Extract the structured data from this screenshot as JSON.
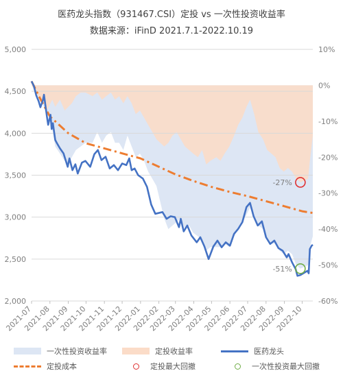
{
  "title": "医药龙头指数（931467.CSI）定投 vs 一次性投资收益率",
  "subtitle": "数据来源：iFinD 2021.7.1-2022.10.19",
  "colors": {
    "lump_area": "#dde6f4",
    "dca_area": "#fbdcc8",
    "index_line": "#4472c4",
    "cost_line": "#ed7d31",
    "dca_marker": "#e03030",
    "lump_marker": "#70ad47"
  },
  "chart_data": {
    "type": "line",
    "title": "医药龙头指数（931467.CSI）定投 vs 一次性投资收益率",
    "subtitle": "数据来源：iFinD 2021.7.1-2022.10.19",
    "x_ticks": [
      "2021-07",
      "2021-08",
      "2021-09",
      "2021-10",
      "2021-11",
      "2021-12",
      "2022-01",
      "2022-02",
      "2022-03",
      "2022-04",
      "2022-05",
      "2022-06",
      "2022-07",
      "2022-08",
      "2022-09",
      "2022-10"
    ],
    "y_left": {
      "min": 2000,
      "max": 5000,
      "ticks": [
        "5,000",
        "4,500",
        "4,000",
        "3,500",
        "3,000",
        "2,500",
        "2,000"
      ]
    },
    "y_right": {
      "min": -60,
      "max": 10,
      "ticks": [
        "10%",
        "0%",
        "-10%",
        "-20%",
        "-30%",
        "-40%",
        "-50%",
        "-60%"
      ]
    },
    "series": [
      {
        "name": "一次性投资收益率",
        "type": "area",
        "axis": "right",
        "points": [
          [
            "2021-07-01",
            0
          ],
          [
            "2021-07-12",
            -3
          ],
          [
            "2021-07-22",
            -6
          ],
          [
            "2021-07-27",
            -9
          ],
          [
            "2021-07-30",
            -8
          ],
          [
            "2021-08-05",
            -12
          ],
          [
            "2021-08-10",
            -17
          ],
          [
            "2021-08-18",
            -19
          ],
          [
            "2021-08-26",
            -21
          ],
          [
            "2021-09-01",
            -22
          ],
          [
            "2021-09-07",
            -20
          ],
          [
            "2021-09-14",
            -18
          ],
          [
            "2021-09-22",
            -17
          ],
          [
            "2021-09-30",
            -16
          ],
          [
            "2021-10-12",
            -16
          ],
          [
            "2021-10-20",
            -13
          ],
          [
            "2021-10-28",
            -16
          ],
          [
            "2021-11-04",
            -14
          ],
          [
            "2021-11-12",
            -13
          ],
          [
            "2021-11-19",
            -16
          ],
          [
            "2021-11-26",
            -16
          ],
          [
            "2021-12-03",
            -18
          ],
          [
            "2021-12-10",
            -14
          ],
          [
            "2021-12-17",
            -17
          ],
          [
            "2021-12-24",
            -20
          ],
          [
            "2021-12-31",
            -19
          ],
          [
            "2022-01-07",
            -21
          ],
          [
            "2022-01-14",
            -24
          ],
          [
            "2022-01-21",
            -26
          ],
          [
            "2022-01-28",
            -28
          ],
          [
            "2022-02-10",
            -37
          ],
          [
            "2022-02-17",
            -40
          ],
          [
            "2022-02-24",
            -39
          ],
          [
            "2022-03-03",
            -38
          ],
          [
            "2022-03-10",
            -37
          ],
          [
            "2022-03-17",
            -40
          ],
          [
            "2022-03-24",
            -39
          ],
          [
            "2022-03-31",
            -41
          ],
          [
            "2022-04-08",
            -42
          ],
          [
            "2022-04-15",
            -43
          ],
          [
            "2022-04-22",
            -46
          ],
          [
            "2022-04-29",
            -45
          ],
          [
            "2022-05-09",
            -45
          ],
          [
            "2022-05-16",
            -45
          ],
          [
            "2022-05-23",
            -44
          ],
          [
            "2022-05-31",
            -45
          ],
          [
            "2022-06-08",
            -42
          ],
          [
            "2022-06-15",
            -40
          ],
          [
            "2022-06-22",
            -38
          ],
          [
            "2022-06-29",
            -36
          ],
          [
            "2022-07-05",
            -34
          ],
          [
            "2022-07-12",
            -37
          ],
          [
            "2022-07-19",
            -39
          ],
          [
            "2022-07-27",
            -40
          ],
          [
            "2022-08-03",
            -43
          ],
          [
            "2022-08-10",
            -44
          ],
          [
            "2022-08-17",
            -44
          ],
          [
            "2022-08-24",
            -46
          ],
          [
            "2022-08-31",
            -47
          ],
          [
            "2022-09-07",
            -46
          ],
          [
            "2022-09-14",
            -47
          ],
          [
            "2022-09-21",
            -50
          ],
          [
            "2022-09-28",
            -51
          ],
          [
            "2022-10-11",
            -50
          ],
          [
            "2022-10-14",
            -45
          ],
          [
            "2022-10-19",
            -42
          ]
        ]
      },
      {
        "name": "定投收益率",
        "type": "area",
        "axis": "right",
        "points": [
          [
            "2021-07-01",
            0
          ],
          [
            "2021-07-12",
            -3
          ],
          [
            "2021-07-22",
            -5
          ],
          [
            "2021-07-27",
            -7
          ],
          [
            "2021-07-30",
            -6
          ],
          [
            "2021-08-05",
            -4
          ],
          [
            "2021-08-10",
            -6
          ],
          [
            "2021-08-18",
            -4
          ],
          [
            "2021-08-26",
            -7
          ],
          [
            "2021-09-01",
            -6
          ],
          [
            "2021-09-07",
            -5
          ],
          [
            "2021-09-14",
            -3
          ],
          [
            "2021-09-22",
            -2
          ],
          [
            "2021-09-30",
            -2
          ],
          [
            "2021-10-12",
            -3
          ],
          [
            "2021-10-20",
            -2
          ],
          [
            "2021-10-28",
            -4
          ],
          [
            "2021-11-04",
            -3
          ],
          [
            "2021-11-12",
            -2
          ],
          [
            "2021-11-19",
            -4
          ],
          [
            "2021-11-26",
            -3
          ],
          [
            "2021-12-03",
            -5
          ],
          [
            "2021-12-10",
            -3
          ],
          [
            "2021-12-17",
            -5
          ],
          [
            "2021-12-24",
            -8
          ],
          [
            "2021-12-31",
            -7
          ],
          [
            "2022-01-07",
            -9
          ],
          [
            "2022-01-14",
            -11
          ],
          [
            "2022-01-21",
            -13
          ],
          [
            "2022-01-28",
            -15
          ],
          [
            "2022-02-10",
            -17
          ],
          [
            "2022-02-17",
            -16
          ],
          [
            "2022-02-24",
            -14
          ],
          [
            "2022-03-03",
            -13
          ],
          [
            "2022-03-10",
            -15
          ],
          [
            "2022-03-17",
            -17
          ],
          [
            "2022-03-24",
            -18
          ],
          [
            "2022-03-31",
            -19
          ],
          [
            "2022-04-08",
            -20
          ],
          [
            "2022-04-15",
            -18
          ],
          [
            "2022-04-22",
            -22
          ],
          [
            "2022-04-29",
            -21
          ],
          [
            "2022-05-09",
            -20
          ],
          [
            "2022-05-16",
            -21
          ],
          [
            "2022-05-23",
            -19
          ],
          [
            "2022-05-31",
            -17
          ],
          [
            "2022-06-08",
            -14
          ],
          [
            "2022-06-15",
            -11
          ],
          [
            "2022-06-22",
            -9
          ],
          [
            "2022-06-29",
            -6
          ],
          [
            "2022-07-05",
            -4
          ],
          [
            "2022-07-12",
            -8
          ],
          [
            "2022-07-19",
            -13
          ],
          [
            "2022-07-27",
            -15
          ],
          [
            "2022-08-03",
            -18
          ],
          [
            "2022-08-10",
            -19
          ],
          [
            "2022-08-17",
            -20
          ],
          [
            "2022-08-24",
            -23
          ],
          [
            "2022-08-31",
            -24
          ],
          [
            "2022-09-07",
            -23
          ],
          [
            "2022-09-14",
            -24
          ],
          [
            "2022-09-21",
            -26
          ],
          [
            "2022-09-28",
            -27
          ],
          [
            "2022-10-11",
            -26
          ],
          [
            "2022-10-14",
            -21
          ],
          [
            "2022-10-19",
            -14
          ]
        ]
      },
      {
        "name": "医药龙头",
        "type": "line",
        "axis": "left",
        "points": [
          [
            "2021-07-01",
            4620
          ],
          [
            "2021-07-05",
            4560
          ],
          [
            "2021-07-09",
            4450
          ],
          [
            "2021-07-13",
            4380
          ],
          [
            "2021-07-16",
            4310
          ],
          [
            "2021-07-20",
            4390
          ],
          [
            "2021-07-22",
            4460
          ],
          [
            "2021-07-27",
            4200
          ],
          [
            "2021-07-29",
            4100
          ],
          [
            "2021-08-02",
            4220
          ],
          [
            "2021-08-04",
            4050
          ],
          [
            "2021-08-06",
            4120
          ],
          [
            "2021-08-10",
            3920
          ],
          [
            "2021-08-13",
            3880
          ],
          [
            "2021-08-18",
            3820
          ],
          [
            "2021-08-24",
            3760
          ],
          [
            "2021-08-31",
            3600
          ],
          [
            "2021-09-03",
            3700
          ],
          [
            "2021-09-08",
            3560
          ],
          [
            "2021-09-13",
            3630
          ],
          [
            "2021-09-17",
            3520
          ],
          [
            "2021-09-24",
            3650
          ],
          [
            "2021-09-30",
            3670
          ],
          [
            "2021-10-08",
            3600
          ],
          [
            "2021-10-15",
            3750
          ],
          [
            "2021-10-21",
            3800
          ],
          [
            "2021-10-27",
            3680
          ],
          [
            "2021-11-03",
            3720
          ],
          [
            "2021-11-10",
            3580
          ],
          [
            "2021-11-17",
            3620
          ],
          [
            "2021-11-24",
            3560
          ],
          [
            "2021-12-01",
            3640
          ],
          [
            "2021-12-08",
            3620
          ],
          [
            "2021-12-13",
            3700
          ],
          [
            "2021-12-17",
            3560
          ],
          [
            "2021-12-22",
            3580
          ],
          [
            "2021-12-28",
            3500
          ],
          [
            "2022-01-05",
            3460
          ],
          [
            "2022-01-12",
            3360
          ],
          [
            "2022-01-19",
            3150
          ],
          [
            "2022-01-26",
            3040
          ],
          [
            "2022-02-07",
            3060
          ],
          [
            "2022-02-14",
            2980
          ],
          [
            "2022-02-21",
            3010
          ],
          [
            "2022-02-28",
            3000
          ],
          [
            "2022-03-07",
            2880
          ],
          [
            "2022-03-10",
            2980
          ],
          [
            "2022-03-15",
            2830
          ],
          [
            "2022-03-21",
            2900
          ],
          [
            "2022-03-28",
            2780
          ],
          [
            "2022-04-06",
            2700
          ],
          [
            "2022-04-12",
            2760
          ],
          [
            "2022-04-19",
            2650
          ],
          [
            "2022-04-26",
            2500
          ],
          [
            "2022-05-04",
            2650
          ],
          [
            "2022-05-11",
            2720
          ],
          [
            "2022-05-18",
            2640
          ],
          [
            "2022-05-25",
            2700
          ],
          [
            "2022-06-01",
            2660
          ],
          [
            "2022-06-08",
            2800
          ],
          [
            "2022-06-15",
            2860
          ],
          [
            "2022-06-22",
            2940
          ],
          [
            "2022-06-29",
            3120
          ],
          [
            "2022-07-05",
            3170
          ],
          [
            "2022-07-11",
            3010
          ],
          [
            "2022-07-18",
            2900
          ],
          [
            "2022-07-25",
            2950
          ],
          [
            "2022-08-01",
            2760
          ],
          [
            "2022-08-08",
            2680
          ],
          [
            "2022-08-15",
            2720
          ],
          [
            "2022-08-22",
            2630
          ],
          [
            "2022-08-29",
            2600
          ],
          [
            "2022-09-05",
            2520
          ],
          [
            "2022-09-08",
            2560
          ],
          [
            "2022-09-14",
            2460
          ],
          [
            "2022-09-20",
            2380
          ],
          [
            "2022-09-23",
            2300
          ],
          [
            "2022-09-28",
            2310
          ],
          [
            "2022-10-10",
            2360
          ],
          [
            "2022-10-12",
            2330
          ],
          [
            "2022-10-14",
            2620
          ],
          [
            "2022-10-17",
            2660
          ],
          [
            "2022-10-19",
            2670
          ]
        ]
      },
      {
        "name": "定投成本",
        "type": "line",
        "axis": "left",
        "points": [
          [
            "2021-07-01",
            4620
          ],
          [
            "2021-07-15",
            4420
          ],
          [
            "2021-08-01",
            4200
          ],
          [
            "2021-09-01",
            4000
          ],
          [
            "2021-10-01",
            3880
          ],
          [
            "2021-11-01",
            3820
          ],
          [
            "2021-12-01",
            3760
          ],
          [
            "2022-01-01",
            3700
          ],
          [
            "2022-02-01",
            3600
          ],
          [
            "2022-03-01",
            3510
          ],
          [
            "2022-04-01",
            3430
          ],
          [
            "2022-05-01",
            3360
          ],
          [
            "2022-06-01",
            3300
          ],
          [
            "2022-07-01",
            3250
          ],
          [
            "2022-08-01",
            3190
          ],
          [
            "2022-09-01",
            3130
          ],
          [
            "2022-10-01",
            3070
          ],
          [
            "2022-10-19",
            3050
          ]
        ]
      }
    ],
    "annotations": [
      {
        "text": "-27%",
        "date": "2022-09-28",
        "value": -27,
        "series": "定投收益率"
      },
      {
        "text": "-51%",
        "date": "2022-09-28",
        "value": -51,
        "series": "一次性投资收益率"
      }
    ],
    "legend": {
      "placement": "bottom",
      "items": [
        "一次性投资收益率",
        "定投收益率",
        "医药龙头",
        "定投成本",
        "定投最大回撤",
        "一次性投资最大回撤"
      ]
    }
  }
}
